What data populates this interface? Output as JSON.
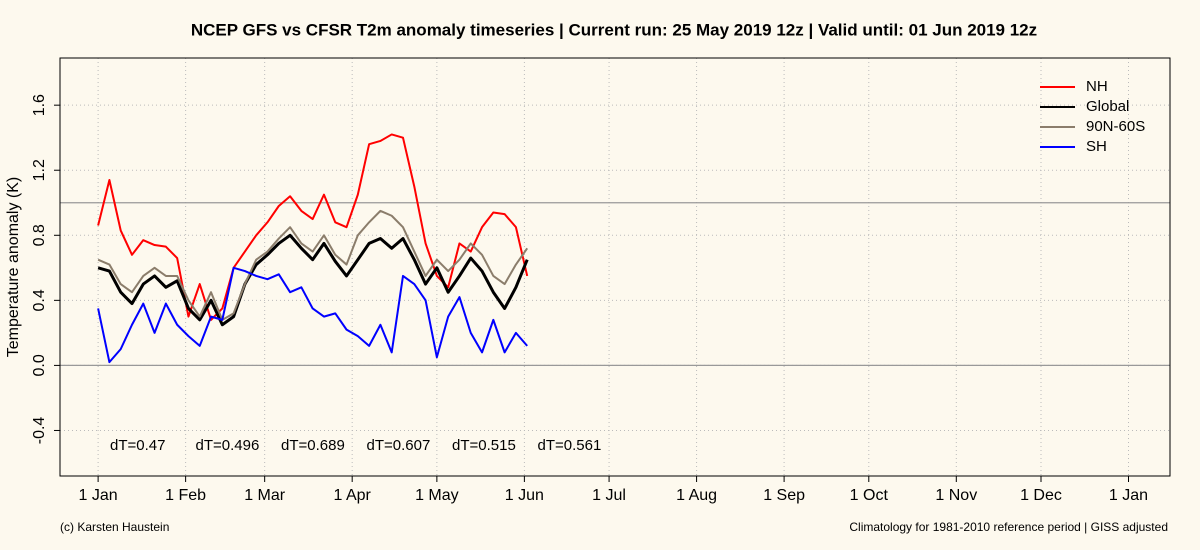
{
  "chart_data": {
    "type": "line",
    "title": "NCEP GFS vs CFSR T2m anomaly timeseries | Current run: 25 May 2019 12z | Valid until: 01 Jun 2019 12z",
    "y_label": "Temperature anomaly (K)",
    "x": [
      0,
      4,
      8,
      12,
      16,
      20,
      24,
      28,
      32,
      36,
      40,
      44,
      48,
      52,
      56,
      60,
      64,
      68,
      72,
      76,
      80,
      84,
      88,
      92,
      96,
      100,
      104,
      108,
      112,
      116,
      120,
      124,
      128,
      132,
      136,
      140,
      144,
      148,
      152
    ],
    "series": [
      {
        "name": "NH",
        "color": "#ff0000",
        "values": [
          0.86,
          1.14,
          0.83,
          0.68,
          0.77,
          0.74,
          0.73,
          0.66,
          0.3,
          0.5,
          0.28,
          0.35,
          0.6,
          0.7,
          0.8,
          0.88,
          0.98,
          1.04,
          0.95,
          0.9,
          1.05,
          0.88,
          0.85,
          1.05,
          1.36,
          1.38,
          1.42,
          1.4,
          1.1,
          0.75,
          0.55,
          0.48,
          0.75,
          0.7,
          0.85,
          0.94,
          0.93,
          0.85,
          0.55
        ]
      },
      {
        "name": "Global",
        "color": "#000000",
        "values": [
          0.6,
          0.58,
          0.45,
          0.38,
          0.5,
          0.55,
          0.48,
          0.52,
          0.35,
          0.28,
          0.4,
          0.25,
          0.3,
          0.5,
          0.62,
          0.68,
          0.75,
          0.8,
          0.72,
          0.65,
          0.75,
          0.64,
          0.55,
          0.65,
          0.75,
          0.78,
          0.72,
          0.78,
          0.65,
          0.5,
          0.6,
          0.45,
          0.55,
          0.66,
          0.58,
          0.45,
          0.35,
          0.48,
          0.65
        ]
      },
      {
        "name": "90N-60S",
        "color": "#8b7d6b",
        "values": [
          0.65,
          0.62,
          0.5,
          0.45,
          0.55,
          0.6,
          0.55,
          0.55,
          0.4,
          0.3,
          0.45,
          0.28,
          0.32,
          0.5,
          0.65,
          0.7,
          0.78,
          0.85,
          0.75,
          0.7,
          0.8,
          0.68,
          0.62,
          0.8,
          0.88,
          0.95,
          0.92,
          0.85,
          0.7,
          0.55,
          0.65,
          0.58,
          0.65,
          0.75,
          0.68,
          0.55,
          0.5,
          0.62,
          0.72
        ]
      },
      {
        "name": "SH",
        "color": "#0000ff",
        "values": [
          0.35,
          0.02,
          0.1,
          0.25,
          0.38,
          0.2,
          0.38,
          0.25,
          0.18,
          0.12,
          0.3,
          0.28,
          0.6,
          0.58,
          0.55,
          0.53,
          0.56,
          0.45,
          0.48,
          0.35,
          0.3,
          0.32,
          0.22,
          0.18,
          0.12,
          0.25,
          0.08,
          0.55,
          0.5,
          0.4,
          0.05,
          0.3,
          0.42,
          0.2,
          0.08,
          0.28,
          0.08,
          0.2,
          0.12
        ]
      }
    ],
    "xlim": [
      -13.5,
      379.7
    ],
    "xticks": [
      {
        "value": 0,
        "label": "1 Jan"
      },
      {
        "value": 31,
        "label": "1 Feb"
      },
      {
        "value": 59,
        "label": "1 Mar"
      },
      {
        "value": 90,
        "label": "1 Apr"
      },
      {
        "value": 120,
        "label": "1 May"
      },
      {
        "value": 151,
        "label": "1 Jun"
      },
      {
        "value": 181,
        "label": "1 Jul"
      },
      {
        "value": 212,
        "label": "1 Aug"
      },
      {
        "value": 243,
        "label": "1 Sep"
      },
      {
        "value": 273,
        "label": "1 Oct"
      },
      {
        "value": 304,
        "label": "1 Nov"
      },
      {
        "value": 334,
        "label": "1 Dec"
      },
      {
        "value": 365,
        "label": "1 Jan"
      }
    ],
    "ylim": [
      -0.68,
      1.89
    ],
    "yticks": [
      -0.4,
      {
        "value": 0,
        "label": "0.0"
      },
      0.4,
      0.8,
      1.2,
      1.6
    ],
    "reference_lines": [
      0,
      1
    ],
    "grid": true,
    "legend": "top-right",
    "annotations": [
      "dT=0.47",
      "dT=0.496",
      "dT=0.689",
      "dT=0.607",
      "dT=0.515",
      "dT=0.561"
    ],
    "footer_left": "(c) Karsten Haustein",
    "footer_right": "Climatology for 1981-2010 reference period | GISS adjusted"
  }
}
